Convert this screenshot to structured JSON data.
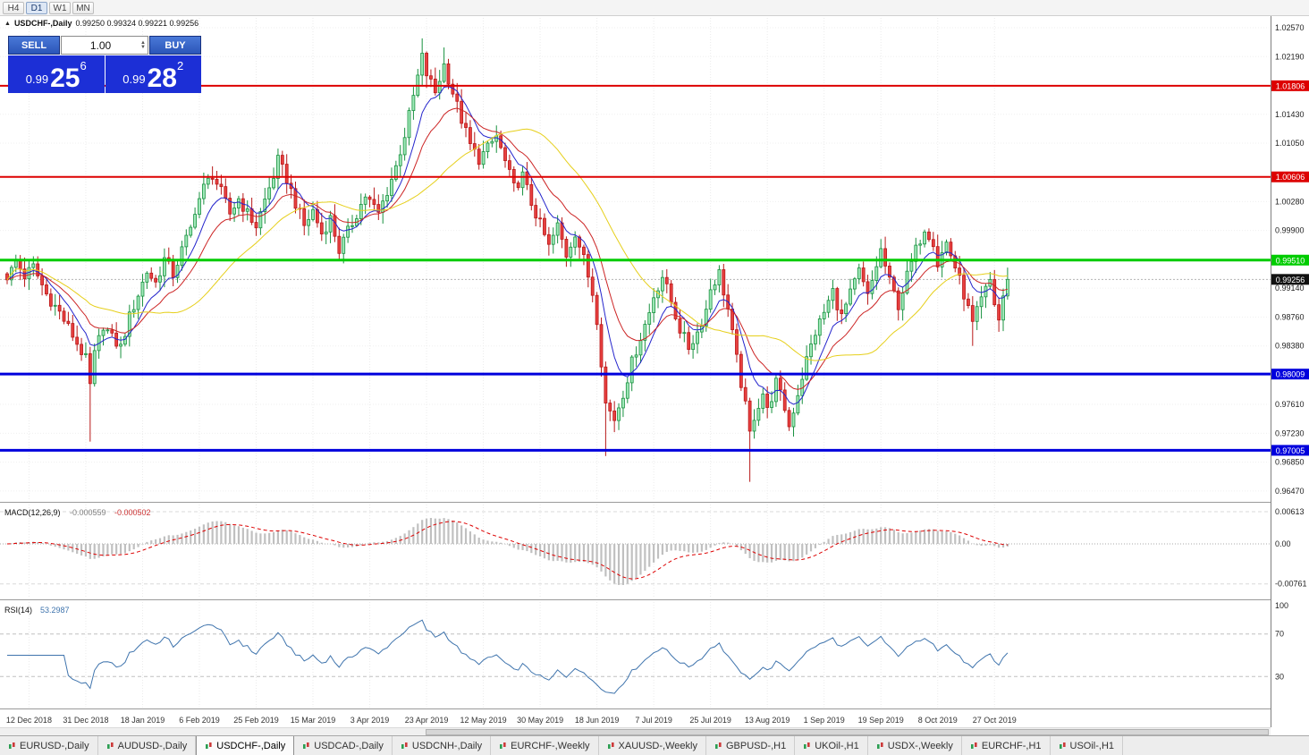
{
  "toolbar": {
    "timeframes": [
      {
        "label": "H4",
        "active": false
      },
      {
        "label": "D1",
        "active": true
      },
      {
        "label": "W1",
        "active": false
      },
      {
        "label": "MN",
        "active": false
      }
    ]
  },
  "header": {
    "collapse_icon": "triangle-up",
    "title": "USDCHF-,Daily",
    "ohlc": "0.99250 0.99324 0.99221 0.99256"
  },
  "trade_panel": {
    "sell_label": "SELL",
    "buy_label": "BUY",
    "volume": "1.00",
    "sell_price": {
      "small": "0.99",
      "big": "25",
      "sup": "6"
    },
    "buy_price": {
      "small": "0.99",
      "big": "28",
      "sup": "2"
    }
  },
  "tabs": {
    "active_index": 2,
    "items": [
      "EURUSD-,Daily",
      "AUDUSD-,Daily",
      "USDCHF-,Daily",
      "USDCAD-,Daily",
      "USDCNH-,Daily",
      "EURCHF-,Weekly",
      "XAUUSD-,Weekly",
      "GBPUSD-,H1",
      "UKOil-,H1",
      "USDX-,Weekly",
      "EURCHF-,H1",
      "USOil-,H1"
    ]
  },
  "chart_data": {
    "type": "candlestick",
    "symbol": "USDCHF",
    "timeframe": "Daily",
    "title": "USDCHF-,Daily",
    "ohlc_display": {
      "open": "0.99250",
      "high": "0.99324",
      "low": "0.99221",
      "close": "0.99256"
    },
    "bar_count": 230,
    "last_close": "0.99256",
    "visible_price_range": {
      "min": 0.9634,
      "max": 1.0266
    },
    "price_ticks": [
      "1.02570",
      "1.02190",
      "1.01430",
      "1.01050",
      "1.00280",
      "0.99900",
      "0.99140",
      "0.98760",
      "0.98380",
      "0.97610",
      "0.97230",
      "0.96850",
      "0.96470"
    ],
    "levels": [
      {
        "price": "1.01806",
        "color": "#dd0000",
        "width": 2
      },
      {
        "price": "1.00606",
        "color": "#dd0000",
        "width": 2
      },
      {
        "price": "0.99510",
        "color": "#00cc00",
        "width": 3
      },
      {
        "price": "0.98009",
        "color": "#0000dd",
        "width": 3
      },
      {
        "price": "0.97005",
        "color": "#0000dd",
        "width": 3
      }
    ],
    "current_price_tag": {
      "price": "0.99256",
      "tag_color": "#111111",
      "line_color": "#b4b4b4"
    },
    "moving_averages": [
      {
        "name": "fast",
        "period": 8,
        "color": "#2424cc"
      },
      {
        "name": "mid",
        "period": 16,
        "color": "#cc2424"
      },
      {
        "name": "slow",
        "period": 32,
        "color": "#e6cf1a"
      }
    ],
    "close_anchors": [
      [
        0,
        0.9925
      ],
      [
        2,
        0.995
      ],
      [
        4,
        0.993
      ],
      [
        6,
        0.9942
      ],
      [
        9,
        0.9906
      ],
      [
        12,
        0.9882
      ],
      [
        15,
        0.9852
      ],
      [
        18,
        0.982
      ],
      [
        19,
        0.9785
      ],
      [
        20,
        0.9826
      ],
      [
        22,
        0.9866
      ],
      [
        24,
        0.9848
      ],
      [
        26,
        0.9836
      ],
      [
        28,
        0.9876
      ],
      [
        30,
        0.9906
      ],
      [
        32,
        0.9936
      ],
      [
        34,
        0.9921
      ],
      [
        36,
        0.9952
      ],
      [
        38,
        0.9932
      ],
      [
        40,
        0.9964
      ],
      [
        42,
        0.9992
      ],
      [
        43,
        1.0018
      ],
      [
        45,
        1.0046
      ],
      [
        47,
        1.0064
      ],
      [
        49,
        1.004
      ],
      [
        51,
        1.0012
      ],
      [
        53,
        1.0032
      ],
      [
        55,
        1.0012
      ],
      [
        57,
        0.9996
      ],
      [
        59,
        1.003
      ],
      [
        61,
        1.0062
      ],
      [
        62,
        1.0082
      ],
      [
        64,
        1.0058
      ],
      [
        66,
        1.0026
      ],
      [
        68,
        0.9996
      ],
      [
        70,
        1.0016
      ],
      [
        72,
        0.9986
      ],
      [
        74,
        1.0006
      ],
      [
        76,
        0.9964
      ],
      [
        78,
        0.9988
      ],
      [
        80,
        1.0012
      ],
      [
        82,
        1.0036
      ],
      [
        83,
        1.0028
      ],
      [
        85,
        1.0012
      ],
      [
        87,
        1.0042
      ],
      [
        89,
        1.0074
      ],
      [
        91,
        1.0116
      ],
      [
        93,
        1.0166
      ],
      [
        95,
        1.0218
      ],
      [
        96,
        1.0196
      ],
      [
        98,
        1.0172
      ],
      [
        100,
        1.0208
      ],
      [
        102,
        1.0172
      ],
      [
        104,
        1.0136
      ],
      [
        106,
        1.0102
      ],
      [
        108,
        1.0084
      ],
      [
        110,
        1.0098
      ],
      [
        112,
        1.0114
      ],
      [
        114,
        1.008
      ],
      [
        116,
        1.0046
      ],
      [
        118,
        1.0062
      ],
      [
        120,
        1.0026
      ],
      [
        122,
        0.9998
      ],
      [
        124,
        0.9968
      ],
      [
        126,
        0.9996
      ],
      [
        128,
        0.9958
      ],
      [
        130,
        0.9988
      ],
      [
        132,
        0.9952
      ],
      [
        134,
        0.9908
      ],
      [
        135,
        0.9874
      ],
      [
        136,
        0.9818
      ],
      [
        137,
        0.9762
      ],
      [
        139,
        0.9742
      ],
      [
        141,
        0.9776
      ],
      [
        143,
        0.9816
      ],
      [
        145,
        0.985
      ],
      [
        147,
        0.9882
      ],
      [
        148,
        0.9904
      ],
      [
        150,
        0.993
      ],
      [
        152,
        0.9896
      ],
      [
        154,
        0.986
      ],
      [
        156,
        0.9836
      ],
      [
        158,
        0.9856
      ],
      [
        160,
        0.9886
      ],
      [
        161,
        0.9914
      ],
      [
        163,
        0.9934
      ],
      [
        165,
        0.9886
      ],
      [
        167,
        0.982
      ],
      [
        169,
        0.9758
      ],
      [
        170,
        0.9722
      ],
      [
        171,
        0.9746
      ],
      [
        173,
        0.9776
      ],
      [
        174,
        0.9752
      ],
      [
        176,
        0.979
      ],
      [
        178,
        0.9756
      ],
      [
        179,
        0.9732
      ],
      [
        181,
        0.9776
      ],
      [
        183,
        0.982
      ],
      [
        185,
        0.9856
      ],
      [
        187,
        0.9882
      ],
      [
        189,
        0.991
      ],
      [
        191,
        0.9876
      ],
      [
        193,
        0.9906
      ],
      [
        195,
        0.9936
      ],
      [
        197,
        0.9902
      ],
      [
        199,
        0.9944
      ],
      [
        200,
        0.9964
      ],
      [
        202,
        0.9922
      ],
      [
        204,
        0.9892
      ],
      [
        206,
        0.993
      ],
      [
        208,
        0.9964
      ],
      [
        210,
        0.9994
      ],
      [
        212,
        0.9976
      ],
      [
        213,
        0.9946
      ],
      [
        215,
        0.9974
      ],
      [
        217,
        0.9942
      ],
      [
        219,
        0.9906
      ],
      [
        221,
        0.9866
      ],
      [
        223,
        0.9898
      ],
      [
        225,
        0.9924
      ],
      [
        226,
        0.9894
      ],
      [
        227,
        0.9872
      ],
      [
        228,
        0.9904
      ],
      [
        229,
        0.99256
      ]
    ],
    "wick_overrides": {
      "19": {
        "low": 0.9712
      },
      "95": {
        "high": 1.0243
      },
      "100": {
        "high": 1.0231
      },
      "137": {
        "low": 0.9693
      },
      "170": {
        "low": 0.9659
      },
      "221": {
        "low": 0.9838
      }
    },
    "date_labels": [
      "12 Dec 2018",
      "31 Dec 2018",
      "18 Jan 2019",
      "6 Feb 2019",
      "25 Feb 2019",
      "15 Mar 2019",
      "3 Apr 2019",
      "23 Apr 2019",
      "12 May 2019",
      "30 May 2019",
      "18 Jun 2019",
      "7 Jul 2019",
      "25 Jul 2019",
      "13 Aug 2019",
      "1 Sep 2019",
      "19 Sep 2019",
      "8 Oct 2019",
      "27 Oct 2019"
    ],
    "first_label_bar": 5,
    "bars_per_label": 13,
    "macd": {
      "title": "MACD(12,26,9)",
      "main_value": "-0.000559",
      "signal_value": "-0.000502",
      "axis_ticks": [
        "0.00613",
        "0.00",
        "-0.00761"
      ],
      "histogram_color": "#c0c0c0",
      "signal_color": "#dd0000"
    },
    "rsi": {
      "title": "RSI(14)",
      "value": "53.2987",
      "axis_ticks": [
        "100",
        "70",
        "30"
      ],
      "levels": [
        70,
        30
      ],
      "line_color": "#3f74ad"
    }
  }
}
